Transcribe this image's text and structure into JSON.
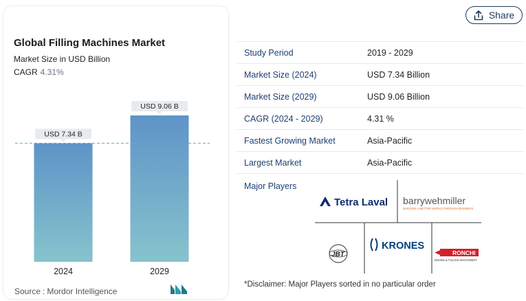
{
  "share_label": "Share",
  "chart": {
    "title": "Global Filling Machines Market",
    "subtitle": "Market Size in USD Billion",
    "cagr_label": "CAGR",
    "cagr_value": "4.31%"
  },
  "chart_data": {
    "type": "bar",
    "categories": [
      "2024",
      "2029"
    ],
    "values": [
      7.34,
      9.06
    ],
    "data_labels": [
      "USD 7.34 B",
      "USD 9.06 B"
    ],
    "title": "Global Filling Machines Market",
    "subtitle": "Market Size in USD Billion",
    "bar_gradient": [
      "#5e94c8",
      "#86c3cc"
    ],
    "reference_line": true,
    "grid": false,
    "legend": "none"
  },
  "source": {
    "label": "Source",
    "separator": ":",
    "name": "Mordor Intelligence"
  },
  "table": [
    {
      "label": "Study Period",
      "value": "2019 - 2029"
    },
    {
      "label": "Market Size (2024)",
      "value": "USD 7.34 Billion"
    },
    {
      "label": "Market Size (2029)",
      "value": "USD 9.06 Billion"
    },
    {
      "label": "CAGR (2024 - 2029)",
      "value": "4.31 %"
    },
    {
      "label": "Fastest Growing Market",
      "value": "Asia-Pacific"
    },
    {
      "label": "Largest Market",
      "value": "Asia-Pacific"
    }
  ],
  "players": {
    "label": "Major Players",
    "logos": [
      "Tetra Laval",
      "barrywehmiller",
      "JBT",
      "KRONES",
      "RONCHI"
    ],
    "barry_tagline": "BUILDING A BETTER WORLD THROUGH BUSINESS",
    "ronchi_tagline": "MIXING & FILLING MACHINERY"
  },
  "disclaimer": "*Disclaimer: Major Players sorted in no particular order",
  "colors": {
    "label_blue": "#1d3f72",
    "bar_top": "#5e94c8",
    "bar_bottom": "#86c3cc",
    "tetra_blue": "#0a2d6e",
    "krones_blue": "#003f7d",
    "ronchi_red": "#d4202a"
  }
}
